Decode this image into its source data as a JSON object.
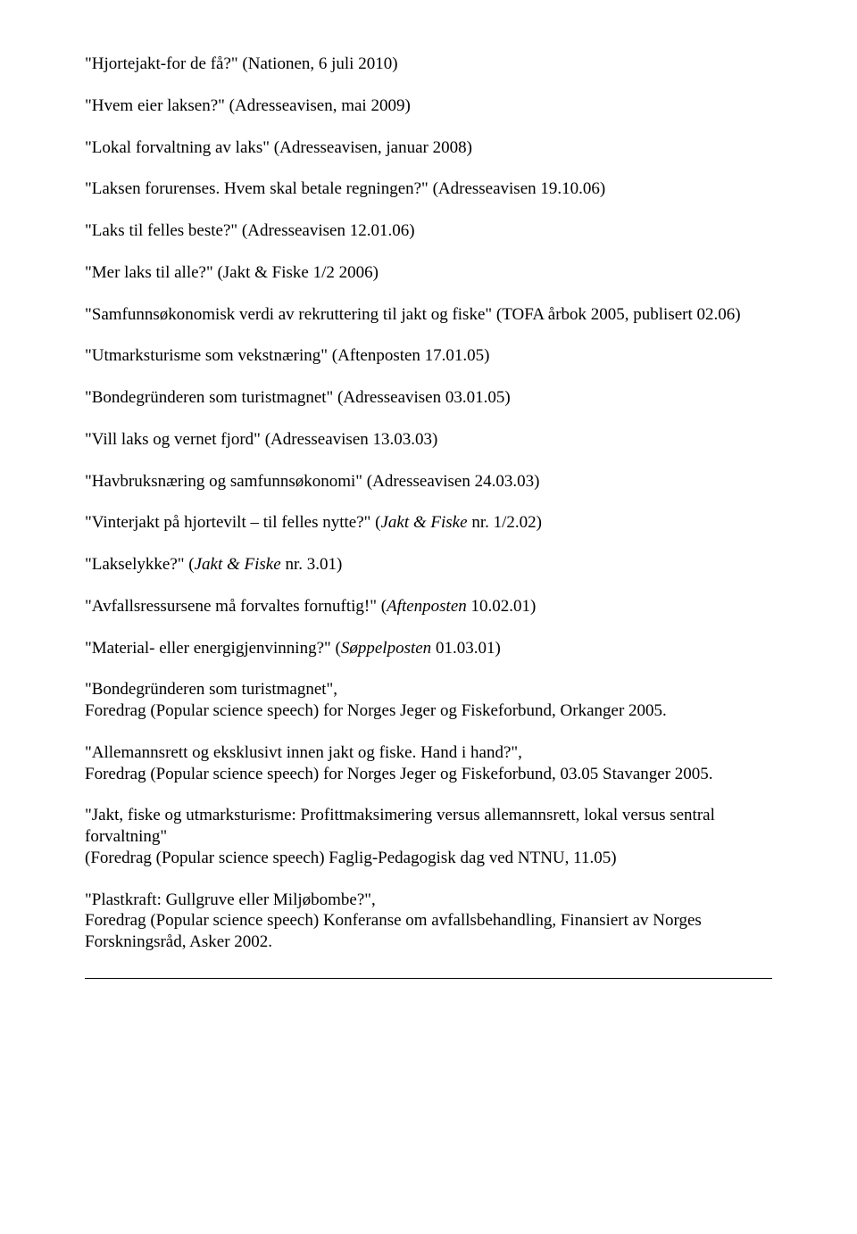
{
  "typography": {
    "font_family": "Times New Roman",
    "font_size_pt": 12,
    "line_height": 1.25,
    "text_color": "#000000",
    "background_color": "#ffffff"
  },
  "entries": [
    {
      "text": "\"Hjortejakt-for de få?\" (Nationen, 6 juli 2010)"
    },
    {
      "text": "\"Hvem eier laksen?\" (Adresseavisen, mai 2009)"
    },
    {
      "text": "\"Lokal forvaltning av laks\" (Adresseavisen, januar 2008)"
    },
    {
      "text": "\"Laksen forurenses. Hvem skal betale regningen?\" (Adresseavisen 19.10.06)"
    },
    {
      "text": "\"Laks til felles beste?\" (Adresseavisen 12.01.06)"
    },
    {
      "text": "\"Mer laks til alle?\" (Jakt & Fiske 1/2 2006)"
    },
    {
      "text": "\"Samfunnsøkonomisk verdi av rekruttering til jakt og fiske\" (TOFA årbok 2005, publisert 02.06)"
    },
    {
      "text": "\"Utmarksturisme som vekstnæring\" (Aftenposten 17.01.05)"
    },
    {
      "text": "\"Bondegründeren som turistmagnet\" (Adresseavisen 03.01.05)"
    },
    {
      "text": "\"Vill laks og vernet fjord\"  (Adresseavisen 13.03.03)"
    },
    {
      "text": "\"Havbruksnæring og samfunnsøkonomi\" (Adresseavisen 24.03.03)"
    }
  ],
  "italic_entries": {
    "vinterjakt": {
      "pre": "\"Vinterjakt på hjortevilt – til felles nytte?\" (",
      "italic": "Jakt & Fiske",
      "post": " nr. 1/2.02)"
    },
    "lakselykke": {
      "pre": "\"Lakselykke?\"  (",
      "italic": "Jakt & Fiske",
      "post": "  nr. 3.01)"
    },
    "avfall": {
      "pre": "\"Avfallsressursene må forvaltes fornuftig!\"       (",
      "italic": "Aftenposten",
      "post": " 10.02.01)"
    },
    "material": {
      "pre": "\"Material- eller energigjenvinning?\"    (",
      "italic": "Søppelposten",
      "post": " 01.03.01)"
    }
  },
  "speeches": [
    {
      "title": "\"Bondegründeren som turistmagnet\",",
      "detail": "Foredrag (Popular science speech) for Norges Jeger og Fiskeforbund, Orkanger 2005."
    },
    {
      "title": "\"Allemannsrett og eksklusivt innen jakt og fiske. Hand i hand?\",",
      "detail": "Foredrag (Popular science speech) for Norges Jeger og Fiskeforbund, 03.05 Stavanger 2005."
    },
    {
      "title": "\"Jakt, fiske og utmarksturisme: Profittmaksimering versus allemannsrett, lokal versus sentral forvaltning\"",
      "detail": "(Foredrag (Popular science speech) Faglig-Pedagogisk dag ved NTNU, 11.05)"
    },
    {
      "title": "\"Plastkraft: Gullgruve eller Miljøbombe?\",",
      "detail": "Foredrag (Popular science speech) Konferanse om avfallsbehandling, Finansiert av Norges Forskningsråd, Asker 2002."
    }
  ]
}
